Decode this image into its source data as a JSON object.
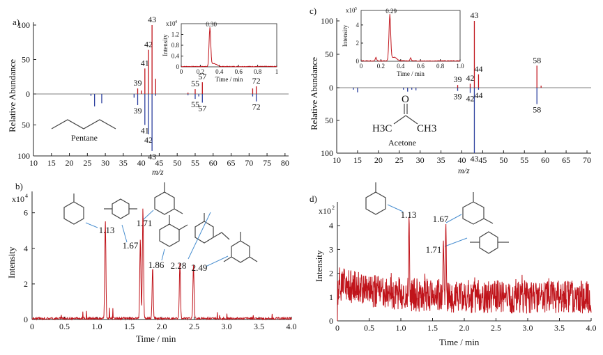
{
  "panels": {
    "a": {
      "label": "a)",
      "type": "mass-spectrum-mirror",
      "x_range": [
        10,
        81
      ],
      "x_ticks": [
        10,
        15,
        20,
        25,
        30,
        35,
        40,
        45,
        50,
        55,
        60,
        65,
        70,
        75,
        80
      ],
      "xlabel": "m/z",
      "ylabel": "Relative Abundance",
      "y_ticks_up": [
        0,
        50,
        100
      ],
      "y_ticks_down": [
        50,
        100
      ],
      "compound_name": "Pentane",
      "top_peaks": [
        {
          "mz": 39,
          "val": 8,
          "label": "39"
        },
        {
          "mz": 40,
          "val": 5,
          "label": ""
        },
        {
          "mz": 41,
          "val": 37,
          "label": "41"
        },
        {
          "mz": 42,
          "val": 64,
          "label": "42"
        },
        {
          "mz": 43,
          "val": 100,
          "label": "43"
        },
        {
          "mz": 44,
          "val": 22,
          "label": ""
        },
        {
          "mz": 53,
          "val": 2,
          "label": ""
        },
        {
          "mz": 55,
          "val": 7,
          "label": "55"
        },
        {
          "mz": 57,
          "val": 17,
          "label": "57"
        },
        {
          "mz": 71,
          "val": 8,
          "label": ""
        },
        {
          "mz": 72,
          "val": 11,
          "label": "72"
        }
      ],
      "bottom_peaks": [
        {
          "mz": 27,
          "val": 20,
          "label": ""
        },
        {
          "mz": 26,
          "val": 3,
          "label": ""
        },
        {
          "mz": 29,
          "val": 15,
          "label": ""
        },
        {
          "mz": 38,
          "val": 6,
          "label": ""
        },
        {
          "mz": 39,
          "val": 18,
          "label": "39"
        },
        {
          "mz": 41,
          "val": 50,
          "label": "41"
        },
        {
          "mz": 42,
          "val": 65,
          "label": "42"
        },
        {
          "mz": 43,
          "val": 92,
          "label": "43"
        },
        {
          "mz": 44,
          "val": 3,
          "label": ""
        },
        {
          "mz": 53,
          "val": 2,
          "label": ""
        },
        {
          "mz": 55,
          "val": 8,
          "label": "55"
        },
        {
          "mz": 56,
          "val": 4,
          "label": ""
        },
        {
          "mz": 57,
          "val": 14,
          "label": "57"
        },
        {
          "mz": 71,
          "val": 4,
          "label": ""
        },
        {
          "mz": 72,
          "val": 12,
          "label": "72"
        }
      ],
      "inset": {
        "ylabel": "Intensity",
        "xlabel": "Time / min",
        "y_mult": "x10",
        "y_mult_exp": "4",
        "y_ticks": [
          "0",
          "0.4",
          "0.8",
          "1.2"
        ],
        "x_ticks": [
          "0",
          "0.2",
          "0.4",
          "0.6",
          "0.8",
          "1"
        ],
        "peak_label": "0.30",
        "peak_time": 0.3,
        "peak_value": 1.4
      }
    },
    "c": {
      "label": "c)",
      "type": "mass-spectrum-mirror",
      "x_range": [
        10,
        71
      ],
      "x_ticks": [
        10,
        15,
        20,
        25,
        30,
        35,
        40,
        45,
        50,
        55,
        60,
        65,
        70
      ],
      "xlabel": "m/z",
      "ylabel": "Relative Abundance",
      "y_ticks_up": [
        0,
        50,
        100
      ],
      "y_ticks_down": [
        50,
        100
      ],
      "compound_name": "Acetone",
      "top_peaks": [
        {
          "mz": 39,
          "val": 4,
          "label": "39"
        },
        {
          "mz": 42,
          "val": 6,
          "label": "42"
        },
        {
          "mz": 43,
          "val": 100,
          "label": "43"
        },
        {
          "mz": 44,
          "val": 20,
          "label": "44"
        },
        {
          "mz": 58,
          "val": 33,
          "label": "58"
        },
        {
          "mz": 59,
          "val": 3,
          "label": ""
        }
      ],
      "bottom_peaks": [
        {
          "mz": 15,
          "val": 7,
          "label": ""
        },
        {
          "mz": 14,
          "val": 3,
          "label": ""
        },
        {
          "mz": 26,
          "val": 3,
          "label": ""
        },
        {
          "mz": 27,
          "val": 6,
          "label": ""
        },
        {
          "mz": 28,
          "val": 3,
          "label": ""
        },
        {
          "mz": 29,
          "val": 4,
          "label": ""
        },
        {
          "mz": 39,
          "val": 5,
          "label": "39"
        },
        {
          "mz": 42,
          "val": 8,
          "label": "42"
        },
        {
          "mz": 43,
          "val": 100,
          "label": "43"
        },
        {
          "mz": 44,
          "val": 3,
          "label": "44"
        },
        {
          "mz": 58,
          "val": 25,
          "label": "58"
        }
      ],
      "inset": {
        "ylabel": "Intensity",
        "xlabel": "Time / min",
        "y_mult": "x10",
        "y_mult_exp": "5",
        "y_ticks": [
          "0",
          "2",
          "4"
        ],
        "x_ticks": [
          "0",
          "0.2",
          "0.4",
          "0.6",
          "0.8",
          "1.0"
        ],
        "peak_label": "0.29",
        "peak_time": 0.29,
        "peak_value": 5.0
      }
    },
    "b": {
      "label": "b)",
      "type": "line",
      "x_range": [
        0,
        4.0
      ],
      "x_ticks": [
        "0",
        "0.5",
        "1.0",
        "1.5",
        "2.0",
        "2.5",
        "3.0",
        "3.5",
        "4.0"
      ],
      "y_range": [
        0,
        7.2
      ],
      "y_ticks": [
        "0",
        "2",
        "4",
        "6"
      ],
      "xlabel": "Time / min",
      "ylabel": "Intensity",
      "y_mult": "x10",
      "y_mult_exp": "4",
      "peaks": [
        {
          "t": 1.13,
          "h": 5.5,
          "label": "1.13"
        },
        {
          "t": 1.67,
          "h": 4.5,
          "label": "1.67"
        },
        {
          "t": 1.71,
          "h": 6.2,
          "label": "1.71"
        },
        {
          "t": 1.86,
          "h": 2.9,
          "label": "1.86"
        },
        {
          "t": 2.28,
          "h": 3.1,
          "label": "2.28"
        },
        {
          "t": 2.49,
          "h": 3.1,
          "label": "2.49"
        }
      ]
    },
    "d": {
      "label": "d)",
      "type": "line",
      "x_range": [
        0,
        4.0
      ],
      "x_ticks": [
        "0",
        "0.5",
        "1.0",
        "1.5",
        "2.0",
        "2.5",
        "3.0",
        "3.5",
        "4.0"
      ],
      "y_range": [
        0,
        5.0
      ],
      "y_ticks": [
        "0",
        "1",
        "2",
        "3",
        "4"
      ],
      "xlabel": "Time / min",
      "ylabel": "Intensity",
      "y_mult": "x10",
      "y_mult_exp": "2",
      "peaks": [
        {
          "t": 1.13,
          "h": 4.4,
          "label": "1.13"
        },
        {
          "t": 1.67,
          "h": 3.4,
          "label": "1.67"
        },
        {
          "t": 1.71,
          "h": 4.1,
          "label": "1.71"
        }
      ]
    }
  },
  "acetone_formula": {
    "left": "H3C",
    "right": "CH3",
    "o": "O"
  },
  "colors": {
    "top": "#c0141b",
    "bottom": "#2b3f9e",
    "trace": "#c0141b"
  }
}
